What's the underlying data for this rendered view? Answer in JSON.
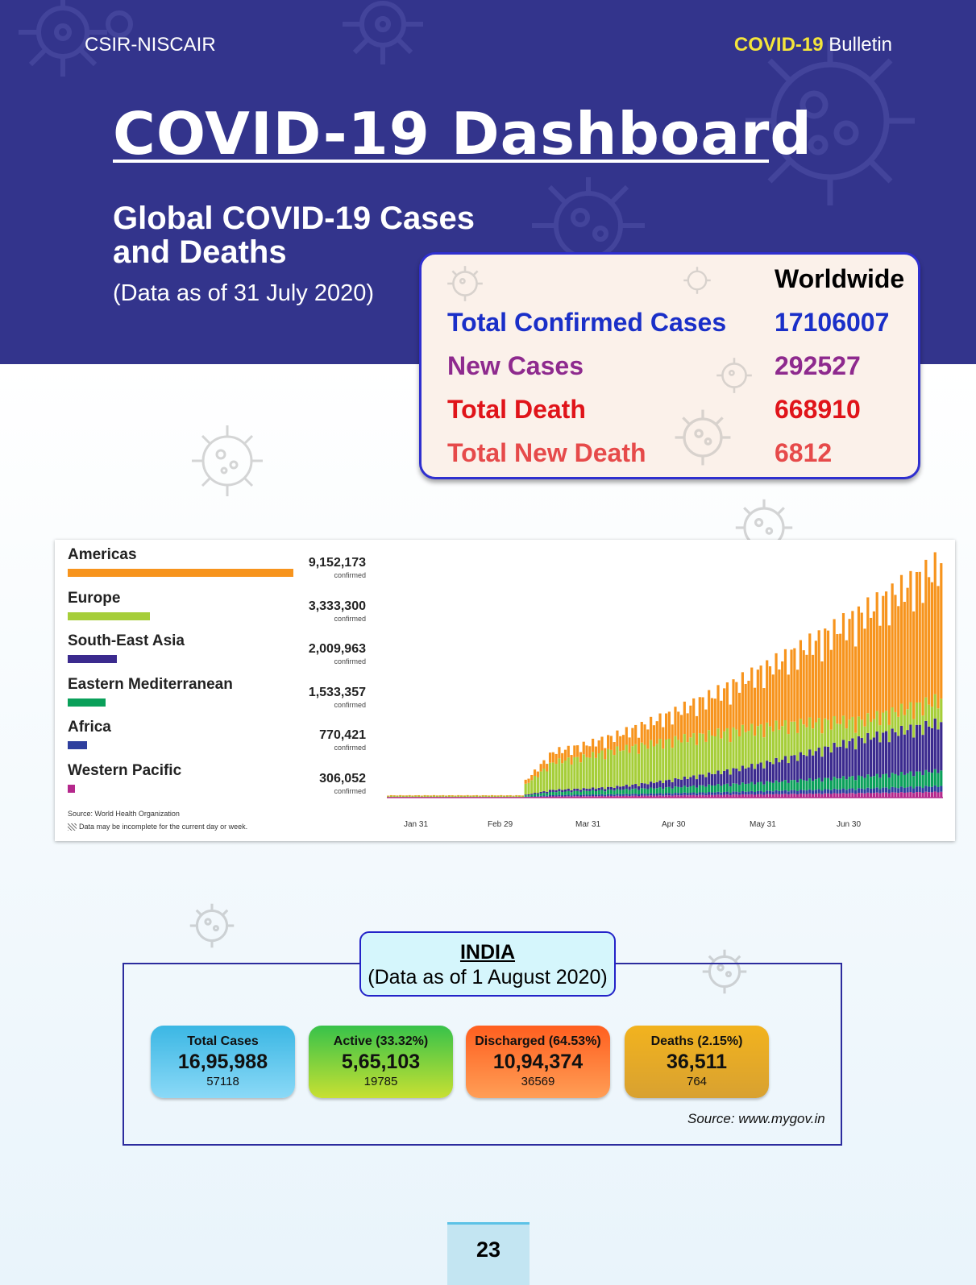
{
  "header": {
    "org": "CSIR-NISCAIR",
    "bulletin_highlight": "COVID-19",
    "bulletin_rest": "Bulletin",
    "title": "COVID-19 Dashboard",
    "subtitle": "Global COVID-19 Cases and Deaths",
    "as_of": "(Data as of 31 July 2020)"
  },
  "worldwide": {
    "heading": "Worldwide",
    "rows": [
      {
        "label": "Total Confirmed Cases",
        "value": "17106007",
        "color": "#1a2fc8"
      },
      {
        "label": "New Cases",
        "value": "292527",
        "color": "#8e2a8e"
      },
      {
        "label": "Total Death",
        "value": "668910",
        "color": "#e0141a"
      },
      {
        "label": "Total New Death",
        "value": "6812",
        "color": "#e64a4a"
      }
    ]
  },
  "chart_data": {
    "type": "bar",
    "regions": [
      {
        "name": "Americas",
        "value": 9152173,
        "display": "9,152,173",
        "color": "#f7941d"
      },
      {
        "name": "Europe",
        "value": 3333300,
        "display": "3,333,300",
        "color": "#a6ce39"
      },
      {
        "name": "South-East Asia",
        "value": 2009963,
        "display": "2,009,963",
        "color": "#3b2a8e"
      },
      {
        "name": "Eastern Mediterranean",
        "value": 1533357,
        "display": "1,533,357",
        "color": "#0aa05a"
      },
      {
        "name": "Africa",
        "value": 770421,
        "display": "770,421",
        "color": "#2e3f9e"
      },
      {
        "name": "Western Pacific",
        "value": 306052,
        "display": "306,052",
        "color": "#b5288c"
      }
    ],
    "value_suffix": "confirmed",
    "x_ticks": [
      "Jan 31",
      "Feb 29",
      "Mar 31",
      "Apr 30",
      "May 31",
      "Jun 30"
    ],
    "source": "Source: World Health Organization",
    "note": "Data may be incomplete for the current day or week."
  },
  "india": {
    "title": "INDIA",
    "as_of": "(Data as of 1 August 2020)",
    "stats": [
      {
        "label": "Total Cases",
        "value": "16,95,988",
        "delta": "57118"
      },
      {
        "label": "Active (33.32%)",
        "value": "5,65,103",
        "delta": "19785"
      },
      {
        "label": "Discharged (64.53%)",
        "value": "10,94,374",
        "delta": "36569"
      },
      {
        "label": "Deaths (2.15%)",
        "value": "36,511",
        "delta": "764"
      }
    ],
    "source": "Source: www.mygov.in"
  },
  "page_number": "23"
}
